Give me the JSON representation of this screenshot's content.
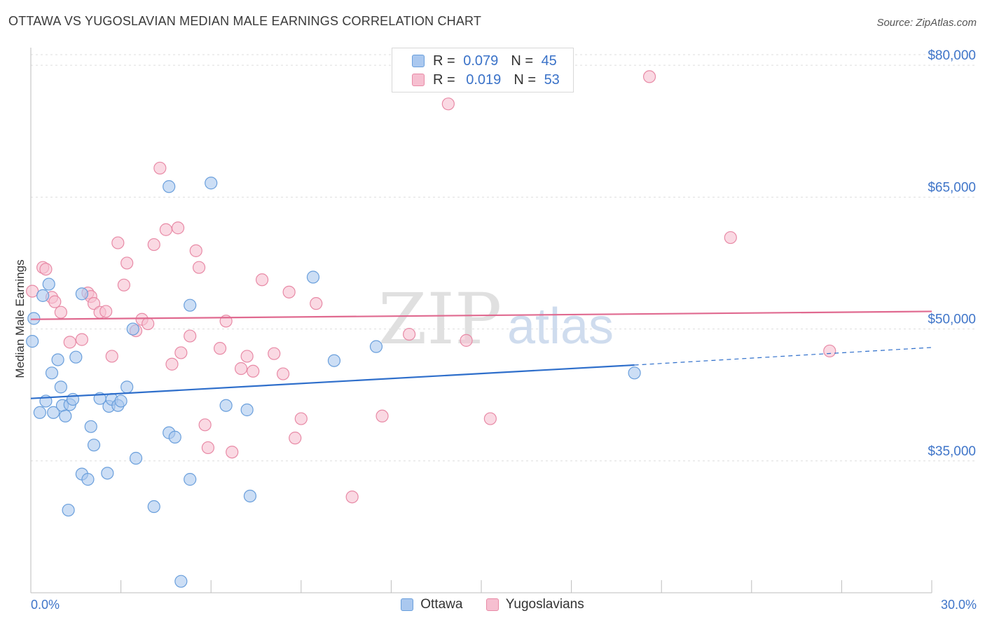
{
  "header": {
    "title": "OTTAWA VS YUGOSLAVIAN MEDIAN MALE EARNINGS CORRELATION CHART",
    "source": "Source: ZipAtlas.com"
  },
  "legend_top": [
    {
      "r_label": "R =",
      "r_value": "0.079",
      "n_label": "N =",
      "n_value": "45"
    },
    {
      "r_label": "R =",
      "r_value": "0.019",
      "n_label": "N =",
      "n_value": "53"
    }
  ],
  "legend_bottom": [
    {
      "label": "Ottawa"
    },
    {
      "label": "Yugoslavians"
    }
  ],
  "watermark": {
    "zip": "ZIP",
    "atlas": "atlas"
  },
  "colors": {
    "ottawa_fill": "#aac8ef",
    "ottawa_stroke": "#6a9fdc",
    "ottawa_line": "#2f6fcb",
    "yugo_fill": "#f6bfd0",
    "yugo_stroke": "#e88aa6",
    "yugo_line": "#e06a90",
    "axis_text": "#3f75c9",
    "grid": "#dedede"
  },
  "chart_data": {
    "type": "scatter",
    "title": "OTTAWA VS YUGOSLAVIAN MEDIAN MALE EARNINGS CORRELATION CHART",
    "xlabel": "",
    "ylabel": "Median Male Earnings",
    "xlim": [
      0,
      30
    ],
    "ylim": [
      20000,
      82000
    ],
    "x_tick_labels": [
      {
        "value": 0,
        "label": "0.0%"
      },
      {
        "value": 30,
        "label": "30.0%"
      }
    ],
    "y_ticks": [
      {
        "value": 35000,
        "label": "$35,000"
      },
      {
        "value": 50000,
        "label": "$50,000"
      },
      {
        "value": 65000,
        "label": "$65,000"
      },
      {
        "value": 80000,
        "label": "$80,000"
      }
    ],
    "x_minor_ticks": [
      3,
      6,
      9,
      12,
      15,
      18,
      21,
      24,
      27,
      30
    ],
    "grid": true,
    "legend_position": "top-center",
    "series": [
      {
        "name": "Ottawa",
        "points": [
          [
            0.05,
            48600
          ],
          [
            0.1,
            51200
          ],
          [
            0.3,
            40500
          ],
          [
            0.4,
            53800
          ],
          [
            0.5,
            41800
          ],
          [
            0.6,
            55100
          ],
          [
            0.7,
            45000
          ],
          [
            0.75,
            40500
          ],
          [
            0.9,
            46500
          ],
          [
            1.0,
            43400
          ],
          [
            1.05,
            41300
          ],
          [
            1.15,
            40100
          ],
          [
            1.3,
            41400
          ],
          [
            1.4,
            42000
          ],
          [
            1.5,
            46800
          ],
          [
            1.7,
            54000
          ],
          [
            2.0,
            38900
          ],
          [
            2.1,
            36800
          ],
          [
            1.7,
            33500
          ],
          [
            1.9,
            32900
          ],
          [
            1.25,
            29400
          ],
          [
            2.3,
            42100
          ],
          [
            2.6,
            41200
          ],
          [
            2.7,
            42000
          ],
          [
            2.9,
            41300
          ],
          [
            3.0,
            41800
          ],
          [
            3.2,
            43400
          ],
          [
            2.55,
            33600
          ],
          [
            3.5,
            35300
          ],
          [
            3.4,
            50000
          ],
          [
            4.1,
            29800
          ],
          [
            4.6,
            66200
          ],
          [
            4.6,
            38200
          ],
          [
            4.8,
            37700
          ],
          [
            5.3,
            32900
          ],
          [
            5.3,
            52700
          ],
          [
            6.0,
            66600
          ],
          [
            6.5,
            41300
          ],
          [
            7.2,
            40800
          ],
          [
            7.3,
            31000
          ],
          [
            9.4,
            55900
          ],
          [
            10.1,
            46400
          ],
          [
            11.5,
            48000
          ],
          [
            20.1,
            45000
          ],
          [
            5.0,
            21300
          ]
        ],
        "trend": {
          "x0": 0,
          "y0": 42100,
          "x1": 20.1,
          "y1": 45900,
          "dashed_to_x": 30,
          "dashed_to_y": 47900
        }
      },
      {
        "name": "Yugoslavians",
        "points": [
          [
            0.05,
            54300
          ],
          [
            0.4,
            57000
          ],
          [
            0.5,
            56800
          ],
          [
            0.7,
            53600
          ],
          [
            0.8,
            53100
          ],
          [
            1.0,
            51900
          ],
          [
            1.3,
            48500
          ],
          [
            1.7,
            48800
          ],
          [
            1.9,
            54100
          ],
          [
            2.0,
            53700
          ],
          [
            2.1,
            52900
          ],
          [
            2.3,
            51900
          ],
          [
            2.5,
            52000
          ],
          [
            2.7,
            46900
          ],
          [
            2.9,
            59800
          ],
          [
            3.1,
            55000
          ],
          [
            3.2,
            57500
          ],
          [
            3.5,
            49800
          ],
          [
            3.7,
            51100
          ],
          [
            3.9,
            50600
          ],
          [
            4.1,
            59600
          ],
          [
            4.3,
            68300
          ],
          [
            4.5,
            61300
          ],
          [
            4.7,
            46000
          ],
          [
            4.9,
            61500
          ],
          [
            5.0,
            47300
          ],
          [
            5.3,
            49200
          ],
          [
            5.5,
            58900
          ],
          [
            5.6,
            57000
          ],
          [
            5.8,
            39100
          ],
          [
            5.9,
            36500
          ],
          [
            6.3,
            47800
          ],
          [
            6.5,
            50900
          ],
          [
            6.7,
            36000
          ],
          [
            7.0,
            45500
          ],
          [
            7.2,
            46900
          ],
          [
            7.4,
            45200
          ],
          [
            7.7,
            55600
          ],
          [
            8.1,
            47200
          ],
          [
            8.4,
            44900
          ],
          [
            8.6,
            54200
          ],
          [
            8.8,
            37600
          ],
          [
            9.0,
            39800
          ],
          [
            9.5,
            52900
          ],
          [
            10.7,
            30900
          ],
          [
            11.7,
            40100
          ],
          [
            12.6,
            49400
          ],
          [
            13.9,
            75600
          ],
          [
            14.5,
            48700
          ],
          [
            15.3,
            39800
          ],
          [
            20.6,
            78700
          ],
          [
            23.3,
            60400
          ],
          [
            26.6,
            47500
          ]
        ],
        "trend": {
          "x0": 0,
          "y0": 51100,
          "x1": 30,
          "y1": 52000
        }
      }
    ]
  }
}
